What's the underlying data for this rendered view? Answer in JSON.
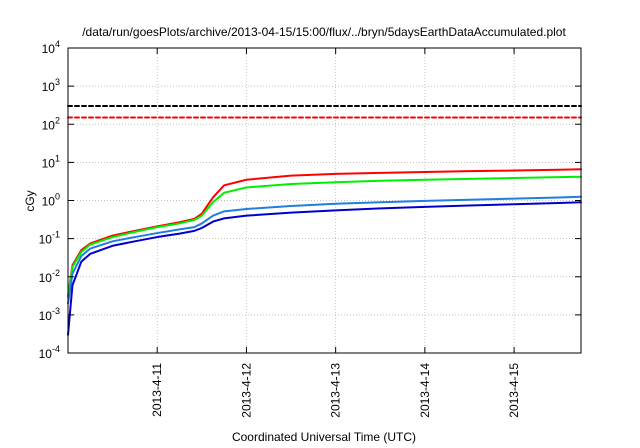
{
  "chart_data": {
    "type": "line",
    "title": "/data/run/goesPlots/archive/2013-04-15/15:00/flux/../bryn/5daysEarthDataAccumulated.plot",
    "xlabel": "Coordinated Universal Time (UTC)",
    "ylabel": "cGy",
    "yscale": "log",
    "ylim": [
      0.0001,
      10000
    ],
    "xlim": [
      "2013-04-10 00:00",
      "2013-04-15 18:00"
    ],
    "grid": true,
    "xticks": [
      "2013-4-11",
      "2013-4-12",
      "2013-4-13",
      "2013-4-14",
      "2013-4-15"
    ],
    "yticks": [
      {
        "value": 0.0001,
        "base": "10",
        "exp": "-4"
      },
      {
        "value": 0.001,
        "base": "10",
        "exp": "-3"
      },
      {
        "value": 0.01,
        "base": "10",
        "exp": "-2"
      },
      {
        "value": 0.1,
        "base": "10",
        "exp": "-1"
      },
      {
        "value": 1,
        "base": "10",
        "exp": "0"
      },
      {
        "value": 10,
        "base": "10",
        "exp": "1"
      },
      {
        "value": 100,
        "base": "10",
        "exp": "2"
      },
      {
        "value": 1000,
        "base": "10",
        "exp": "3"
      },
      {
        "value": 10000,
        "base": "10",
        "exp": "4"
      }
    ],
    "series": [
      {
        "color": "#ff0000",
        "style": "solid",
        "x": [
          "2013-04-10 00:00",
          "2013-04-10 01:12",
          "2013-04-10 03:36",
          "2013-04-10 06:00",
          "2013-04-10 12:00",
          "2013-04-10 18:00",
          "2013-04-11 00:00",
          "2013-04-11 06:00",
          "2013-04-11 10:00",
          "2013-04-11 12:00",
          "2013-04-11 15:00",
          "2013-04-11 18:00",
          "2013-04-12 00:00",
          "2013-04-12 12:00",
          "2013-04-13 00:00",
          "2013-04-13 12:00",
          "2013-04-14 00:00",
          "2013-04-14 12:00",
          "2013-04-15 00:00",
          "2013-04-15 12:00",
          "2013-04-15 18:00"
        ],
        "y": [
          0.003,
          0.02,
          0.05,
          0.075,
          0.12,
          0.16,
          0.21,
          0.27,
          0.33,
          0.45,
          1.2,
          2.5,
          3.5,
          4.5,
          5.0,
          5.3,
          5.6,
          5.9,
          6.1,
          6.4,
          6.6
        ]
      },
      {
        "color": "#00ee00",
        "style": "solid",
        "x": [
          "2013-04-10 00:00",
          "2013-04-10 01:12",
          "2013-04-10 03:36",
          "2013-04-10 06:00",
          "2013-04-10 12:00",
          "2013-04-10 18:00",
          "2013-04-11 00:00",
          "2013-04-11 06:00",
          "2013-04-11 10:00",
          "2013-04-11 12:00",
          "2013-04-11 15:00",
          "2013-04-11 18:00",
          "2013-04-12 00:00",
          "2013-04-12 12:00",
          "2013-04-13 00:00",
          "2013-04-13 12:00",
          "2013-04-14 00:00",
          "2013-04-14 12:00",
          "2013-04-15 00:00",
          "2013-04-15 12:00",
          "2013-04-15 18:00"
        ],
        "y": [
          0.003,
          0.018,
          0.045,
          0.07,
          0.11,
          0.15,
          0.2,
          0.25,
          0.31,
          0.4,
          0.9,
          1.6,
          2.2,
          2.7,
          3.0,
          3.3,
          3.5,
          3.7,
          3.9,
          4.1,
          4.2
        ]
      },
      {
        "color": "#1e7fe0",
        "style": "solid",
        "x": [
          "2013-04-10 00:00",
          "2013-04-10 01:12",
          "2013-04-10 03:36",
          "2013-04-10 06:00",
          "2013-04-10 12:00",
          "2013-04-10 18:00",
          "2013-04-11 00:00",
          "2013-04-11 06:00",
          "2013-04-11 10:00",
          "2013-04-11 12:00",
          "2013-04-11 15:00",
          "2013-04-11 18:00",
          "2013-04-12 00:00",
          "2013-04-12 12:00",
          "2013-04-13 00:00",
          "2013-04-13 12:00",
          "2013-04-14 00:00",
          "2013-04-14 12:00",
          "2013-04-15 00:00",
          "2013-04-15 12:00",
          "2013-04-15 18:00"
        ],
        "y": [
          0.002,
          0.012,
          0.035,
          0.055,
          0.085,
          0.11,
          0.14,
          0.175,
          0.2,
          0.25,
          0.4,
          0.52,
          0.6,
          0.72,
          0.82,
          0.9,
          0.98,
          1.05,
          1.12,
          1.2,
          1.25
        ]
      },
      {
        "color": "#0000cc",
        "style": "solid",
        "x": [
          "2013-04-10 00:00",
          "2013-04-10 01:12",
          "2013-04-10 03:36",
          "2013-04-10 06:00",
          "2013-04-10 12:00",
          "2013-04-10 18:00",
          "2013-04-11 00:00",
          "2013-04-11 06:00",
          "2013-04-11 10:00",
          "2013-04-11 12:00",
          "2013-04-11 15:00",
          "2013-04-11 18:00",
          "2013-04-12 00:00",
          "2013-04-12 12:00",
          "2013-04-13 00:00",
          "2013-04-13 12:00",
          "2013-04-14 00:00",
          "2013-04-14 12:00",
          "2013-04-15 00:00",
          "2013-04-15 12:00",
          "2013-04-15 18:00"
        ],
        "y": [
          0.0003,
          0.006,
          0.025,
          0.04,
          0.065,
          0.085,
          0.11,
          0.135,
          0.16,
          0.19,
          0.28,
          0.34,
          0.4,
          0.48,
          0.55,
          0.62,
          0.68,
          0.74,
          0.8,
          0.86,
          0.9
        ]
      },
      {
        "color": "#000000",
        "style": "dashed",
        "x": [
          "2013-04-10 00:00",
          "2013-04-15 18:00"
        ],
        "y": [
          300,
          300
        ]
      },
      {
        "color": "#ff0000",
        "style": "dashed",
        "x": [
          "2013-04-10 00:00",
          "2013-04-15 18:00"
        ],
        "y": [
          150,
          150
        ]
      }
    ]
  }
}
